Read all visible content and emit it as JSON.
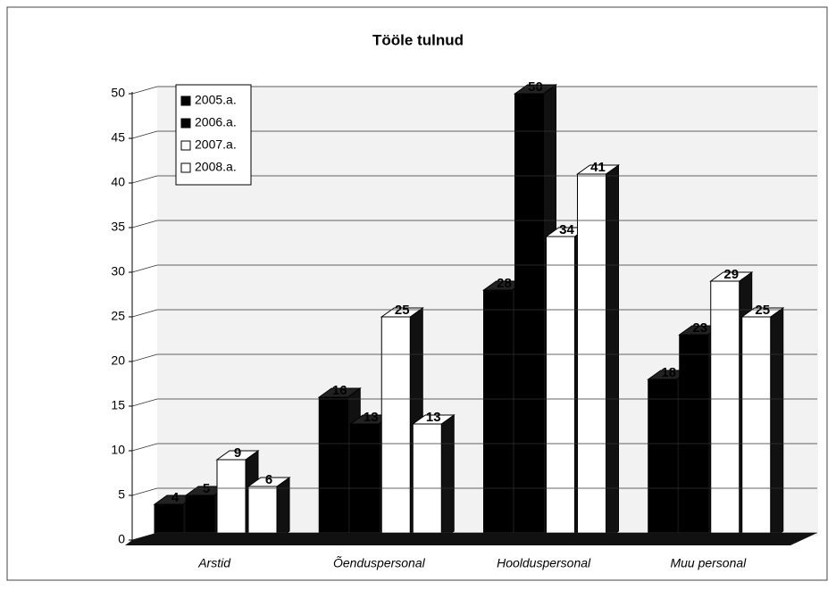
{
  "chart_data": {
    "type": "bar3d",
    "title": "Tööle tulnud",
    "categories": [
      "Arstid",
      "Õenduspersonal",
      "Hoolduspersonal",
      "Muu personal"
    ],
    "series": [
      {
        "name": "2005.a.",
        "color": "#000000",
        "values": [
          4,
          16,
          28,
          18
        ]
      },
      {
        "name": "2006.a.",
        "color": "#000000",
        "values": [
          5,
          13,
          50,
          23
        ]
      },
      {
        "name": "2007.a.",
        "color": "#ffffff",
        "values": [
          9,
          25,
          34,
          29
        ]
      },
      {
        "name": "2008.a.",
        "color": "#ffffff",
        "values": [
          6,
          13,
          41,
          25
        ]
      }
    ],
    "ylim": [
      0,
      50
    ],
    "yticks": [
      0,
      5,
      10,
      15,
      20,
      25,
      30,
      35,
      40,
      45,
      50
    ],
    "grid": true,
    "legend": "upper left"
  }
}
